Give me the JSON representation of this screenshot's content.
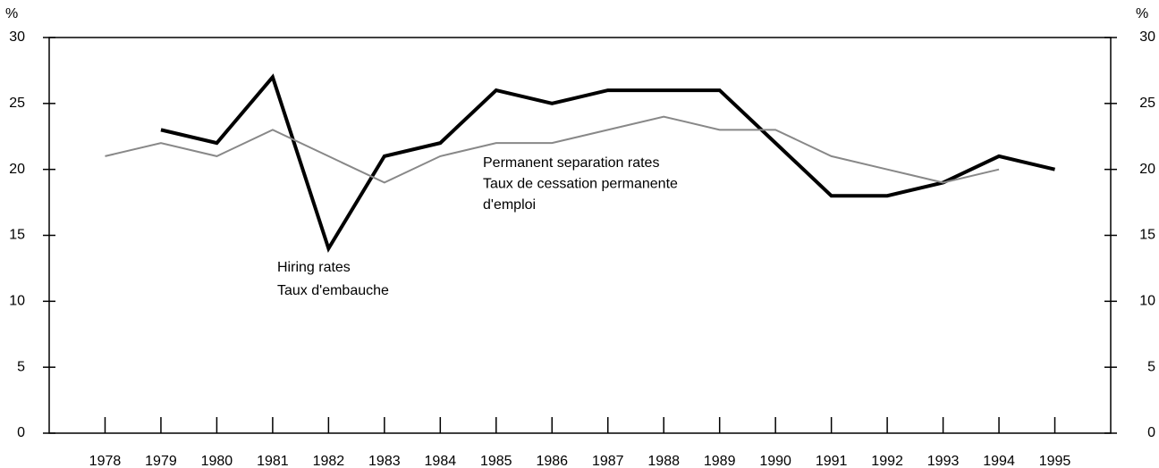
{
  "chart_data": {
    "type": "line",
    "x": [
      1978,
      1979,
      1980,
      1981,
      1982,
      1983,
      1984,
      1985,
      1986,
      1987,
      1988,
      1989,
      1990,
      1991,
      1992,
      1993,
      1994,
      1995
    ],
    "series": [
      {
        "name": [
          "Hiring rates",
          "Taux d'embauche"
        ],
        "color": "#000000",
        "values": [
          null,
          23,
          22,
          27,
          14,
          21,
          22,
          26,
          25,
          26,
          26,
          26,
          22,
          18,
          18,
          19,
          21,
          20
        ]
      },
      {
        "name": [
          "Permanent separation rates",
          "Taux de cessation permanente",
          "d'emploi"
        ],
        "color": "#888888",
        "values": [
          21,
          22,
          21,
          23,
          21,
          19,
          21,
          22,
          22,
          23,
          24,
          23,
          23,
          21,
          20,
          19,
          20,
          null
        ]
      }
    ],
    "ylabel": "%",
    "y2label": "%",
    "xlim": [
      1977,
      1996
    ],
    "ylim": [
      0,
      30
    ],
    "yticks": [
      0,
      5,
      10,
      15,
      20,
      25,
      30
    ],
    "y2lim": [
      0,
      30
    ],
    "y2ticks": [
      0,
      5,
      10,
      15,
      20,
      25,
      30
    ],
    "grid": false
  }
}
